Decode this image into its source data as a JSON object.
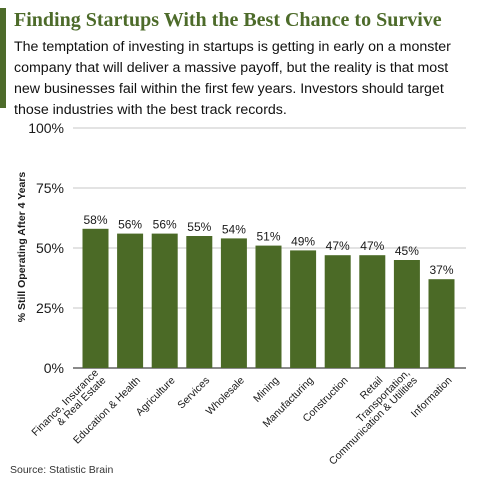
{
  "header": {
    "title": "Finding Startups With the Best Chance to Survive",
    "subtitle": "The temptation of investing in startups is getting in early on a monster company that will deliver a massive payoff, but the reality is that most new businesses fail within the first few years. Investors should target those industries with the best track records."
  },
  "footer": {
    "source": "Source: Statistic Brain"
  },
  "colors": {
    "accent": "#4d6b2a",
    "bar": "#4b6a26"
  },
  "chart_data": {
    "type": "bar",
    "ylabel": "% Still Operating After 4 Years",
    "xlabel": "",
    "ylim": [
      0,
      100
    ],
    "yticks": [
      "0%",
      "25%",
      "50%",
      "75%",
      "100%"
    ],
    "grid": true,
    "categories": [
      [
        "Finance, Insurance",
        "& Real Estate"
      ],
      [
        "Education & Health"
      ],
      [
        "Agriculture"
      ],
      [
        "Services"
      ],
      [
        "Wholesale"
      ],
      [
        "Mining"
      ],
      [
        "Manufacturing"
      ],
      [
        "Construction"
      ],
      [
        "Retail"
      ],
      [
        "Transportation,",
        "Communication & Utilities"
      ],
      [
        "Information"
      ]
    ],
    "values": [
      58,
      56,
      56,
      55,
      54,
      51,
      49,
      47,
      47,
      45,
      37
    ],
    "data_labels": [
      "58%",
      "56%",
      "56%",
      "55%",
      "54%",
      "51%",
      "49%",
      "47%",
      "47%",
      "45%",
      "37%"
    ]
  }
}
